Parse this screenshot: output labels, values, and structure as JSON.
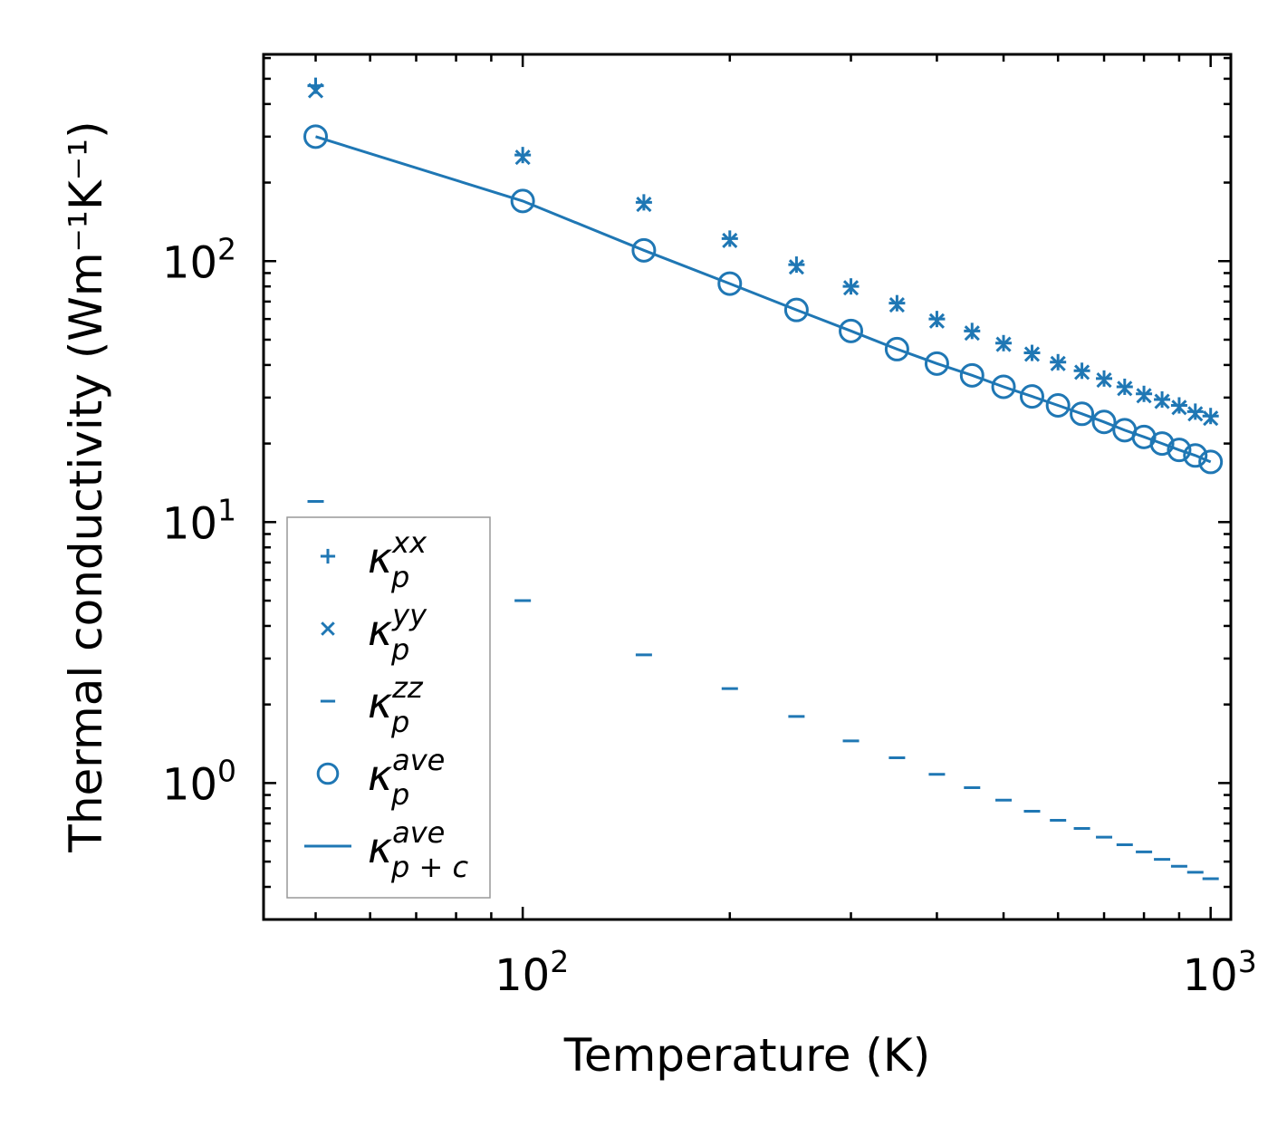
{
  "chart_data": {
    "type": "scatter",
    "title": "",
    "xlabel": "Temperature (K)",
    "ylabel": "Thermal conductivity (Wm⁻¹K⁻¹)",
    "xscale": "log",
    "yscale": "log",
    "xlim": [
      42,
      1070
    ],
    "ylim": [
      0.3,
      620
    ],
    "x_ticks": [
      {
        "value": 100,
        "base": "10",
        "exp": "2"
      },
      {
        "value": 1000,
        "base": "10",
        "exp": "3"
      }
    ],
    "y_ticks": [
      {
        "value": 1,
        "base": "10",
        "exp": "0"
      },
      {
        "value": 10,
        "base": "10",
        "exp": "1"
      },
      {
        "value": 100,
        "base": "10",
        "exp": "2"
      }
    ],
    "color": "#1f77b4",
    "x": [
      50,
      100,
      150,
      200,
      250,
      300,
      350,
      400,
      450,
      500,
      550,
      600,
      650,
      700,
      750,
      800,
      850,
      900,
      950,
      1000
    ],
    "series": [
      {
        "name": "kxx",
        "marker": "plus",
        "values": [
          470,
          255,
          168,
          122,
          97,
          80,
          69,
          60,
          54,
          48.5,
          44.5,
          41,
          38,
          35.5,
          33,
          31,
          29.5,
          28,
          26.5,
          25.5
        ]
      },
      {
        "name": "kyy",
        "marker": "x",
        "values": [
          450,
          250,
          165,
          120,
          95,
          79,
          68,
          59,
          53,
          48,
          44,
          40.5,
          37.5,
          35,
          32.5,
          30.5,
          29,
          27.5,
          26,
          25
        ]
      },
      {
        "name": "kzz",
        "marker": "hline",
        "values": [
          12,
          5.0,
          3.1,
          2.3,
          1.8,
          1.45,
          1.25,
          1.08,
          0.96,
          0.86,
          0.78,
          0.72,
          0.67,
          0.62,
          0.58,
          0.545,
          0.51,
          0.48,
          0.455,
          0.43
        ]
      },
      {
        "name": "kave",
        "marker": "circle",
        "values": [
          300,
          170,
          110,
          82,
          65,
          54,
          46,
          40.5,
          36.5,
          33,
          30.3,
          28,
          26,
          24.2,
          22.5,
          21.2,
          20,
          18.9,
          18,
          17
        ]
      },
      {
        "name": "kpc",
        "marker": "line",
        "values": [
          300,
          170,
          110,
          82,
          65,
          54,
          46,
          40.5,
          36.5,
          33,
          30.3,
          28,
          26,
          24.2,
          22.5,
          21.2,
          20,
          18.9,
          18,
          17
        ]
      }
    ],
    "legend": {
      "position": "lower-left",
      "entries": [
        {
          "series": "kxx",
          "sym": "κ",
          "sub": "p",
          "sup": "xx"
        },
        {
          "series": "kyy",
          "sym": "κ",
          "sub": "p",
          "sup": "yy"
        },
        {
          "series": "kzz",
          "sym": "κ",
          "sub": "p",
          "sup": "zz"
        },
        {
          "series": "kave",
          "sym": "κ",
          "sub": "p",
          "sup": "ave"
        },
        {
          "series": "kpc",
          "sym": "κ",
          "sub": "p + c",
          "sup": "ave"
        }
      ]
    }
  }
}
